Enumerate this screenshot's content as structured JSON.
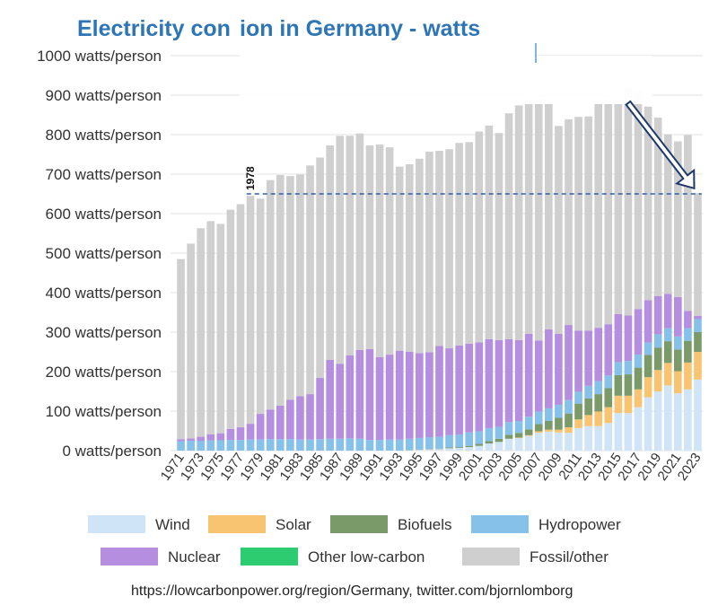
{
  "chart_data": {
    "type": "bar",
    "stacked": true,
    "title": "Electricity consumption in Germany - watts",
    "title_visible_parts": [
      "Electricity con",
      "ion in Germany -  watts"
    ],
    "xlabel": "",
    "ylabel": "",
    "ylim": [
      0,
      1000
    ],
    "y_ticks": [
      0,
      100,
      200,
      300,
      400,
      500,
      600,
      700,
      800,
      900,
      1000
    ],
    "y_tick_suffix": " watts/person",
    "categories": [
      "1971",
      "1972",
      "1973",
      "1974",
      "1975",
      "1976",
      "1977",
      "1978",
      "1979",
      "1980",
      "1981",
      "1982",
      "1983",
      "1984",
      "1985",
      "1986",
      "1987",
      "1988",
      "1989",
      "1990",
      "1991",
      "1992",
      "1993",
      "1994",
      "1995",
      "1996",
      "1997",
      "1998",
      "1999",
      "2000",
      "2001",
      "2002",
      "2003",
      "2004",
      "2005",
      "2006",
      "2007",
      "2008",
      "2009",
      "2010",
      "2011",
      "2012",
      "2013",
      "2014",
      "2015",
      "2016",
      "2017",
      "2018",
      "2019",
      "2020",
      "2021",
      "2022",
      "2023"
    ],
    "x_tick_labels": [
      "1971",
      "1973",
      "1975",
      "1977",
      "1979",
      "1981",
      "1983",
      "1985",
      "1987",
      "1989",
      "1991",
      "1993",
      "1995",
      "1997",
      "1999",
      "2001",
      "2003",
      "2005",
      "2007",
      "2009",
      "2011",
      "2013",
      "2015",
      "2017",
      "2019",
      "2021",
      "2023"
    ],
    "series": [
      {
        "name": "Wind",
        "color": "#cfe4f7",
        "values": [
          0,
          0,
          0,
          0,
          0,
          0,
          0,
          0,
          0,
          0,
          0,
          0,
          0,
          0,
          0,
          0,
          0,
          0,
          0,
          0,
          0,
          0,
          0,
          1,
          2,
          3,
          4,
          6,
          7,
          9,
          12,
          18,
          22,
          30,
          32,
          37,
          45,
          48,
          46,
          45,
          57,
          62,
          62,
          70,
          95,
          95,
          110,
          135,
          150,
          165,
          145,
          155,
          180
        ]
      },
      {
        "name": "Solar",
        "color": "#f8c471",
        "values": [
          0,
          0,
          0,
          0,
          0,
          0,
          0,
          0,
          0,
          0,
          0,
          0,
          0,
          0,
          0,
          0,
          0,
          0,
          0,
          0,
          0,
          0,
          0,
          0,
          0,
          0,
          0,
          0,
          0,
          0,
          0,
          0,
          0,
          0,
          1,
          2,
          4,
          5,
          7,
          14,
          22,
          28,
          37,
          40,
          44,
          44,
          45,
          51,
          54,
          57,
          56,
          68,
          70
        ]
      },
      {
        "name": "Biofuels",
        "color": "#7a9a6a",
        "values": [
          0,
          0,
          0,
          0,
          0,
          0,
          0,
          0,
          0,
          0,
          0,
          0,
          0,
          0,
          0,
          0,
          0,
          0,
          0,
          0,
          0,
          0,
          0,
          1,
          1,
          1,
          1,
          2,
          2,
          3,
          5,
          6,
          8,
          10,
          12,
          15,
          18,
          22,
          30,
          35,
          40,
          42,
          44,
          48,
          52,
          54,
          55,
          56,
          57,
          55,
          55,
          55,
          50
        ]
      },
      {
        "name": "Hydropower",
        "color": "#85c1e9",
        "values": [
          24,
          25,
          25,
          26,
          26,
          27,
          27,
          28,
          28,
          29,
          29,
          29,
          28,
          28,
          29,
          30,
          30,
          31,
          30,
          27,
          27,
          28,
          28,
          28,
          29,
          30,
          30,
          31,
          32,
          34,
          32,
          33,
          30,
          32,
          30,
          32,
          32,
          32,
          33,
          34,
          30,
          32,
          33,
          32,
          33,
          34,
          33,
          32,
          33,
          33,
          33,
          32,
          33
        ]
      },
      {
        "name": "Nuclear",
        "color": "#b58ee0",
        "values": [
          5,
          6,
          10,
          15,
          18,
          28,
          32,
          40,
          65,
          75,
          85,
          100,
          110,
          115,
          155,
          200,
          190,
          210,
          225,
          230,
          210,
          215,
          225,
          220,
          215,
          215,
          230,
          220,
          225,
          225,
          225,
          225,
          220,
          210,
          205,
          210,
          180,
          200,
          180,
          190,
          155,
          140,
          135,
          130,
          122,
          115,
          115,
          107,
          97,
          87,
          100,
          44,
          8
        ]
      },
      {
        "name": "Other low-carbon",
        "color": "#2ecc71",
        "values": [
          0,
          0,
          0,
          0,
          0,
          0,
          0,
          0,
          0,
          0,
          0,
          0,
          0,
          0,
          0,
          0,
          0,
          0,
          0,
          0,
          0,
          0,
          0,
          0,
          0,
          0,
          0,
          0,
          0,
          0,
          0,
          0,
          0,
          0,
          0,
          0,
          0,
          0,
          0,
          0,
          0,
          0,
          0,
          0,
          0,
          0,
          0,
          0,
          0,
          0,
          0,
          0,
          0
        ]
      },
      {
        "name": "Fossil/other",
        "color": "#cfcfcf",
        "values": [
          456,
          493,
          528,
          540,
          530,
          555,
          565,
          577,
          545,
          581,
          584,
          566,
          561,
          579,
          558,
          543,
          577,
          556,
          548,
          516,
          538,
          525,
          466,
          475,
          492,
          508,
          494,
          504,
          513,
          510,
          534,
          541,
          524,
          572,
          594,
          592,
          612,
          574,
          526,
          521,
          541,
          542,
          571,
          570,
          539,
          578,
          552,
          490,
          452,
          404,
          394,
          445,
          311
        ]
      }
    ],
    "annotations": [
      {
        "type": "vline-label",
        "x": "1978",
        "text": "1978"
      },
      {
        "type": "hline",
        "y": 650,
        "from": "1978",
        "to": "2023",
        "style": "dashed",
        "color": "#2e5ea8"
      },
      {
        "type": "arrow",
        "from": {
          "x": "2016",
          "y": 880
        },
        "to": {
          "x": "2023",
          "y": 655
        },
        "color": "#1f3a68"
      }
    ],
    "legend": {
      "placement": "bottom",
      "items": [
        "Wind",
        "Solar",
        "Biofuels",
        "Hydropower",
        "Nuclear",
        "Other low-carbon",
        "Fossil/other"
      ]
    }
  },
  "source": "https://lowcarbonpower.org/region/Germany, twitter.com/bjornlomborg",
  "colors": {
    "title": "#2e75b6",
    "grid": "#e3e3e3",
    "dashed_line": "#2e5ea8",
    "arrow": "#1f3a68"
  }
}
